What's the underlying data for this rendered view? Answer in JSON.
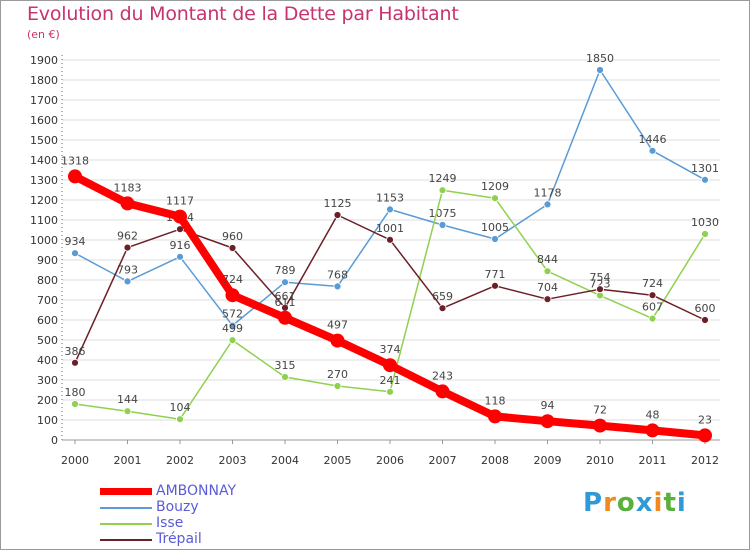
{
  "header": {
    "title": "Evolution du Montant de la Dette par Habitant",
    "subtitle": "(en €)"
  },
  "logo": {
    "text": "Proxiti"
  },
  "colors": {
    "title": "#c8336e",
    "legend_text": "#5b5bd6",
    "grid": "#dddddd",
    "axis_accent": "#c8336e"
  },
  "chart_data": {
    "type": "line",
    "title": "Evolution du Montant de la Dette par Habitant",
    "subtitle": "(en €)",
    "xlabel": "",
    "ylabel": "",
    "x": [
      "2000",
      "2001",
      "2002",
      "2003",
      "2004",
      "2005",
      "2006",
      "2007",
      "2008",
      "2009",
      "2010",
      "2011",
      "2012"
    ],
    "ylim": [
      0,
      1900
    ],
    "yticks": [
      0,
      100,
      200,
      300,
      400,
      500,
      600,
      700,
      800,
      900,
      1000,
      1100,
      1200,
      1300,
      1400,
      1500,
      1600,
      1700,
      1800,
      1900
    ],
    "grid": true,
    "legend_position": "bottom-left",
    "series": [
      {
        "name": "Bouzy",
        "color": "#5b9bd5",
        "values": [
          934,
          793,
          916,
          572,
          789,
          768,
          1153,
          1075,
          1005,
          1178,
          1850,
          1446,
          1301
        ],
        "labels": [
          "934",
          "793",
          "916",
          "572",
          "789",
          "768",
          "1153",
          "1075",
          "1005",
          "1178",
          "1850",
          "1446",
          "1301"
        ]
      },
      {
        "name": "Isse",
        "color": "#8fd14f",
        "values": [
          180,
          144,
          104,
          499,
          315,
          270,
          241,
          1249,
          1209,
          844,
          723,
          607,
          1030
        ],
        "labels": [
          "180",
          "144",
          "104",
          "499",
          "315",
          "270",
          "241",
          "1249",
          "1209",
          "844",
          "723",
          "607",
          "1030"
        ]
      },
      {
        "name": "Trépail",
        "color": "#6b1f26",
        "values": [
          386,
          962,
          1054,
          960,
          661,
          1125,
          1001,
          659,
          771,
          704,
          754,
          724,
          600
        ],
        "labels": [
          "386",
          "962",
          "1054",
          "960",
          "661",
          "1125",
          "1001",
          "659",
          "771",
          "704",
          "754",
          "724",
          "600"
        ]
      },
      {
        "name": "AMBONNAY",
        "color": "#ff0000",
        "values": [
          1318,
          1183,
          1117,
          724,
          611,
          497,
          374,
          243,
          118,
          94,
          72,
          48,
          23
        ],
        "labels": [
          "1318",
          "1183",
          "1117",
          "724",
          "611",
          "497",
          "374",
          "243",
          "118",
          "94",
          "72",
          "48",
          "23"
        ]
      }
    ]
  },
  "legend": [
    {
      "name": "AMBONNAY",
      "color": "#ff0000",
      "width": 7
    },
    {
      "name": "Bouzy",
      "color": "#5b9bd5",
      "width": 2
    },
    {
      "name": "Isse",
      "color": "#8fd14f",
      "width": 2
    },
    {
      "name": "Trépail",
      "color": "#6b1f26",
      "width": 2
    }
  ]
}
